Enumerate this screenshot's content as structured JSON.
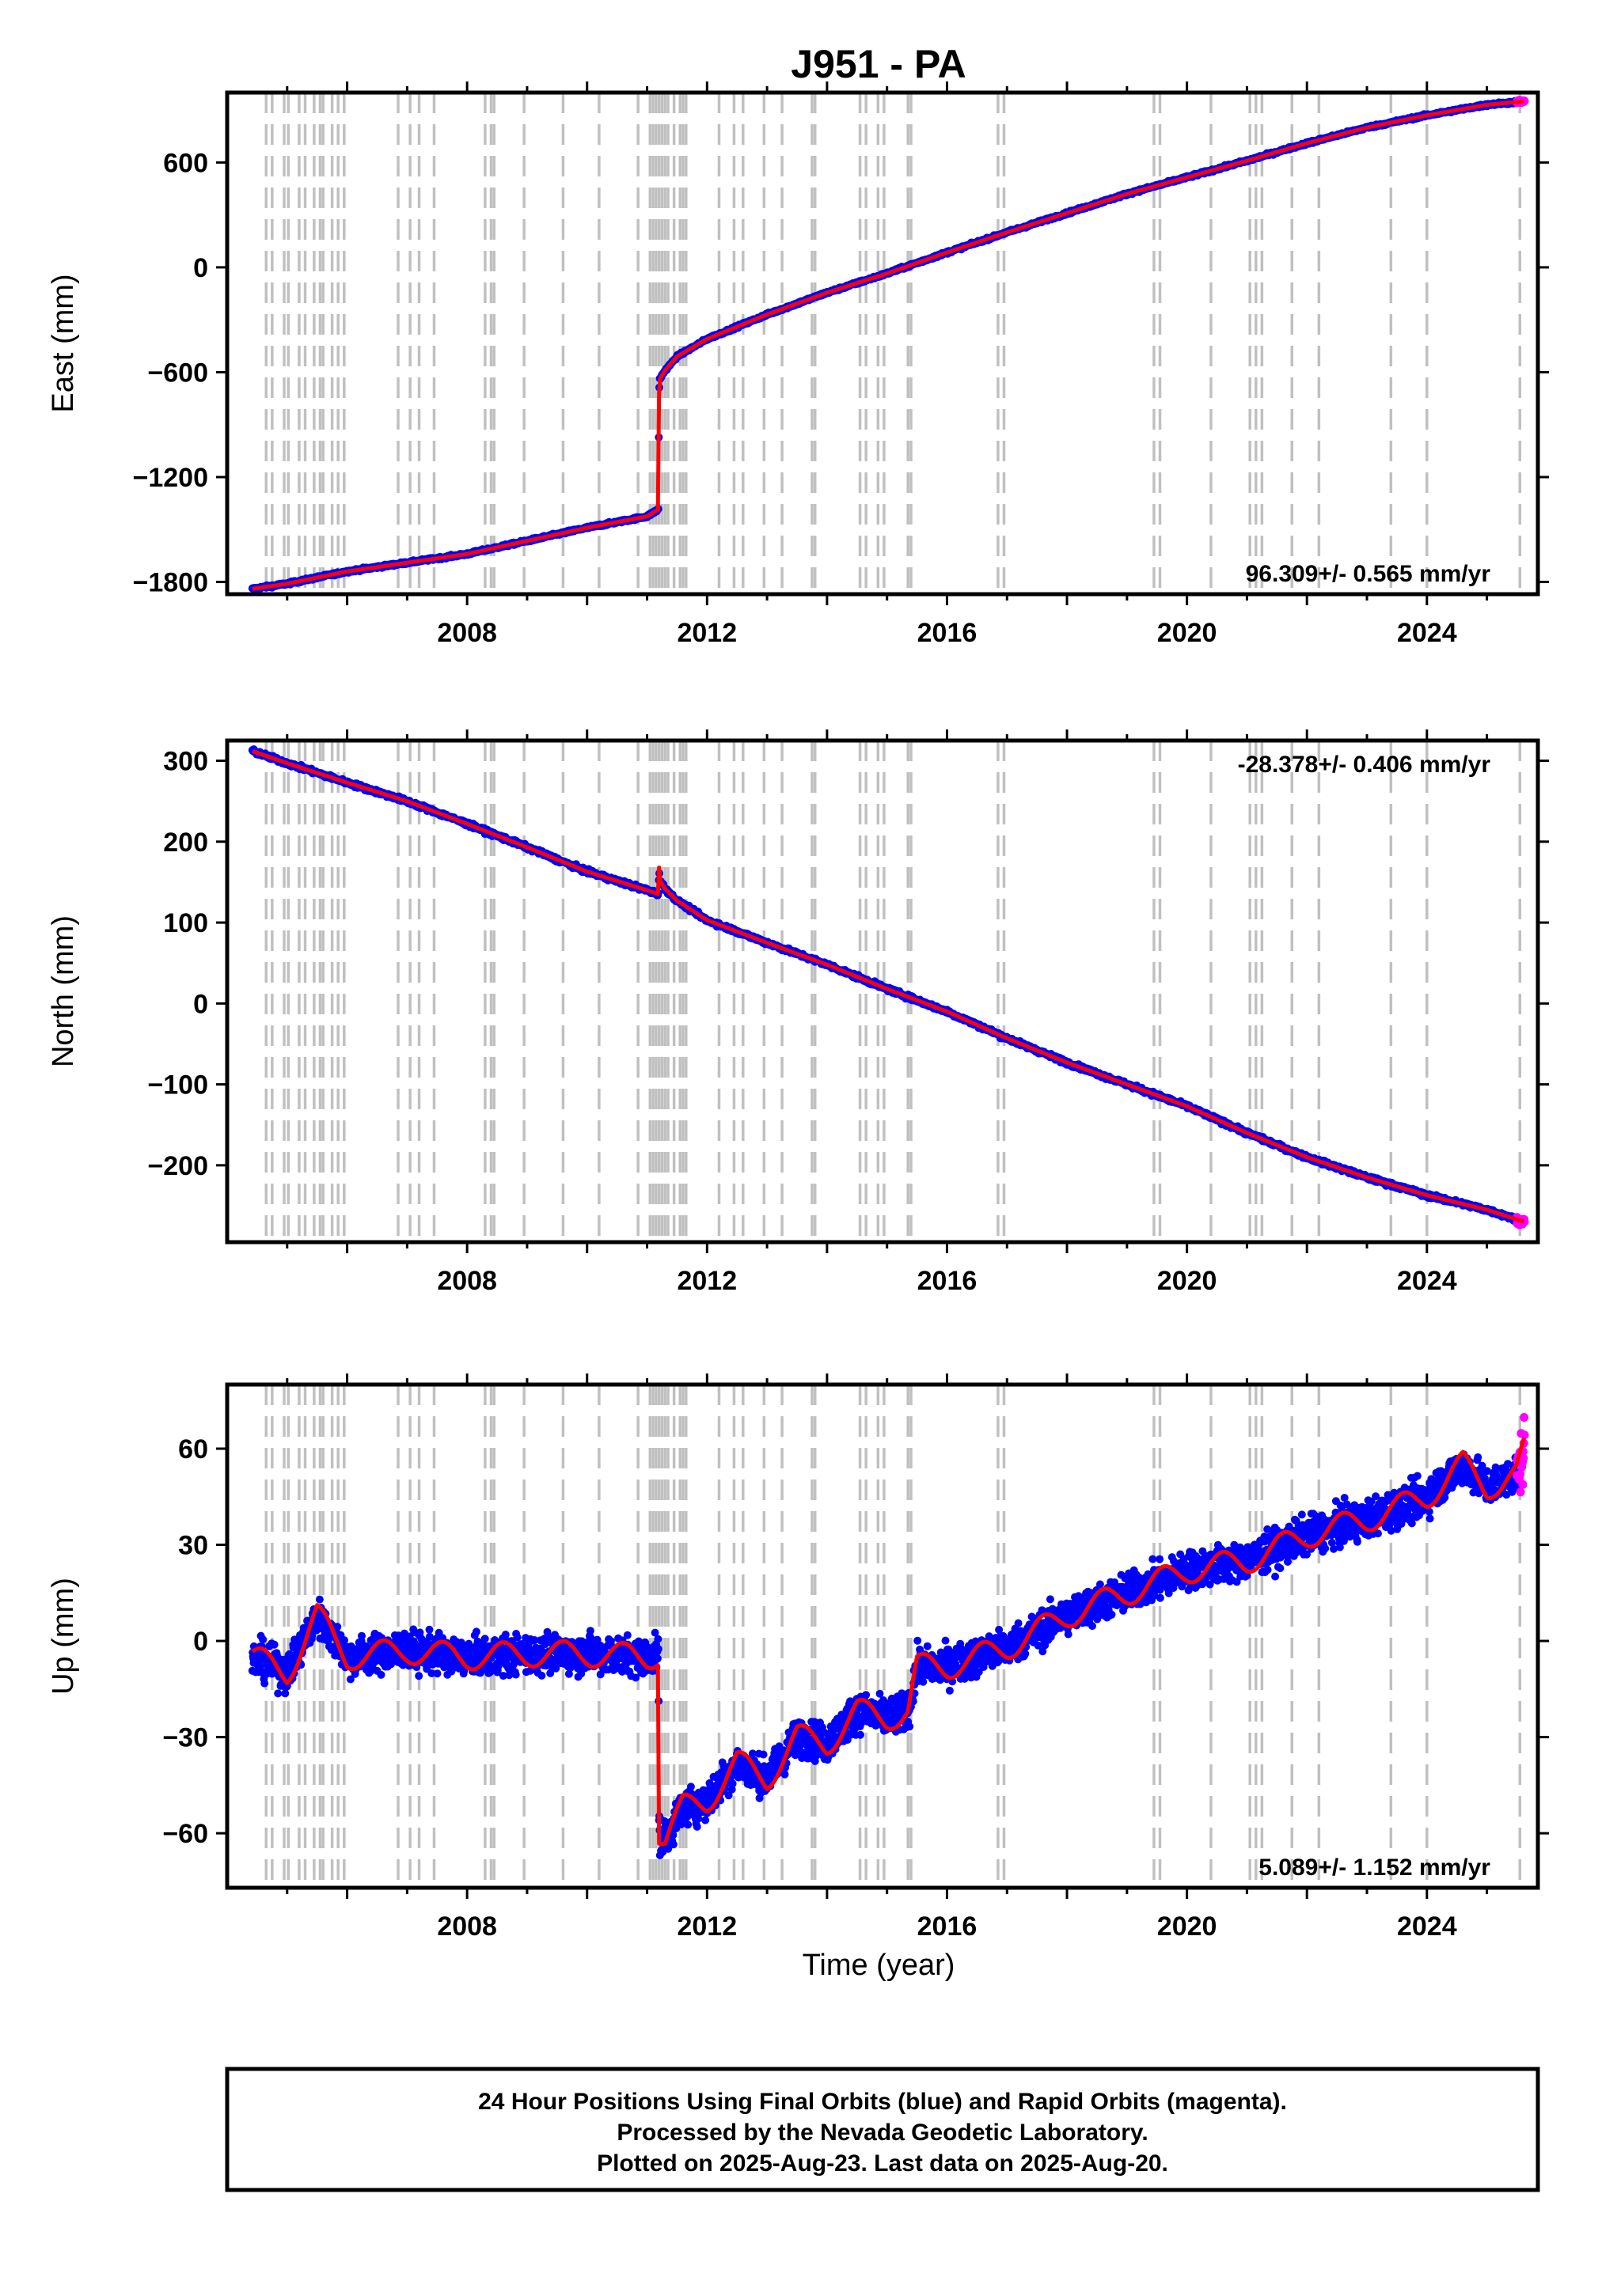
{
  "title": "J951 - PA",
  "xlabel": "Time (year)",
  "x_ticks": [
    2008,
    2012,
    2016,
    2020,
    2024
  ],
  "colors": {
    "final_orbits": "#0000ff",
    "rapid_orbits": "#ff00ff",
    "model": "#ff0000",
    "event_lines": "#c0c0c0",
    "frame": "#000000"
  },
  "event_lines": [
    2004.65,
    2004.75,
    2004.95,
    2005.02,
    2005.2,
    2005.3,
    2005.45,
    2005.55,
    2005.6,
    2005.75,
    2005.85,
    2005.95,
    2006.85,
    2007.05,
    2007.2,
    2007.45,
    2008.3,
    2008.4,
    2008.45,
    2008.95,
    2009.6,
    2010.2,
    2010.85,
    2011.05,
    2011.1,
    2011.15,
    2011.2,
    2011.25,
    2011.3,
    2011.35,
    2011.45,
    2011.55,
    2011.6,
    2011.65,
    2012.2,
    2012.45,
    2012.6,
    2012.95,
    2013.25,
    2013.75,
    2013.8,
    2014.55,
    2014.65,
    2014.85,
    2014.95,
    2015.35,
    2015.4,
    2016.85,
    2016.95,
    2019.45,
    2019.55,
    2020.4,
    2021.05,
    2021.15,
    2021.25,
    2021.75,
    2022.2,
    2023.4,
    2024.0,
    2025.55
  ],
  "footer": {
    "line1": "24 Hour Positions Using Final Orbits (blue) and Rapid Orbits (magenta).",
    "line2": "Processed by the Nevada Geodetic Laboratory.",
    "line3": "Plotted on 2025-Aug-23. Last data on 2025-Aug-20."
  },
  "chart_data": [
    {
      "type": "scatter",
      "name": "east",
      "ylabel": "East (mm)",
      "rate_label": "96.309+/- 0.565 mm/yr",
      "rate_position": "bottom-right",
      "xlim": [
        2004.0,
        2025.85
      ],
      "ylim": [
        -1870,
        1000
      ],
      "y_ticks": [
        600,
        0,
        -600,
        -1200,
        -1800
      ],
      "x": [
        2004.42,
        2005.0,
        2006.0,
        2007.0,
        2008.0,
        2009.0,
        2010.0,
        2011.0,
        2011.19,
        2011.2,
        2011.21,
        2011.3,
        2011.5,
        2012.0,
        2013.0,
        2014.0,
        2015.0,
        2016.0,
        2017.0,
        2018.0,
        2019.0,
        2020.0,
        2021.0,
        2022.0,
        2023.0,
        2024.0,
        2025.0,
        2025.63
      ],
      "y": [
        -1840,
        -1810,
        -1740,
        -1690,
        -1640,
        -1565,
        -1490,
        -1425,
        -1385,
        -720,
        -640,
        -590,
        -510,
        -410,
        -270,
        -145,
        -35,
        85,
        200,
        310,
        420,
        515,
        610,
        710,
        800,
        870,
        930,
        950
      ]
    },
    {
      "type": "scatter",
      "name": "north",
      "ylabel": "North (mm)",
      "rate_label": "-28.378+/- 0.406 mm/yr",
      "rate_position": "top-right",
      "xlim": [
        2004.0,
        2025.85
      ],
      "ylim": [
        -295,
        325
      ],
      "y_ticks": [
        300,
        200,
        100,
        0,
        -100,
        -200
      ],
      "x": [
        2004.42,
        2005.0,
        2006.0,
        2007.0,
        2008.0,
        2009.0,
        2010.0,
        2011.0,
        2011.19,
        2011.2,
        2011.21,
        2011.3,
        2011.5,
        2012.0,
        2013.0,
        2014.0,
        2015.0,
        2016.0,
        2017.0,
        2018.0,
        2019.0,
        2020.0,
        2021.0,
        2022.0,
        2023.0,
        2024.0,
        2025.0,
        2025.63
      ],
      "y": [
        312,
        297,
        273,
        250,
        222,
        193,
        163,
        140,
        135,
        168,
        152,
        142,
        127,
        103,
        75,
        48,
        18,
        -10,
        -43,
        -73,
        -100,
        -127,
        -160,
        -190,
        -215,
        -237,
        -255,
        -270
      ]
    },
    {
      "type": "scatter",
      "name": "up",
      "ylabel": "Up (mm)",
      "rate_label": "5.089+/- 1.152 mm/yr",
      "rate_position": "bottom-right",
      "xlim": [
        2004.0,
        2025.85
      ],
      "ylim": [
        -77,
        80
      ],
      "y_ticks": [
        60,
        30,
        0,
        -30,
        -60
      ],
      "x": [
        2004.42,
        2005.0,
        2005.5,
        2006.0,
        2007.0,
        2008.0,
        2009.0,
        2010.0,
        2011.0,
        2011.19,
        2011.2,
        2011.3,
        2011.6,
        2012.0,
        2012.5,
        2013.0,
        2013.5,
        2014.0,
        2014.5,
        2015.0,
        2015.35,
        2015.5,
        2016.0,
        2017.0,
        2018.0,
        2019.0,
        2020.0,
        2021.0,
        2022.0,
        2023.0,
        2024.0,
        2024.6,
        2025.0,
        2025.5,
        2025.63
      ],
      "y": [
        -5,
        -10,
        8,
        -5,
        -3,
        -5,
        -4,
        -4,
        -5,
        -4,
        -60,
        -62,
        -52,
        -50,
        -38,
        -43,
        -30,
        -32,
        -22,
        -24,
        -22,
        -8,
        -8,
        -2,
        8,
        15,
        22,
        25,
        33,
        38,
        45,
        55,
        48,
        52,
        60
      ]
    }
  ]
}
